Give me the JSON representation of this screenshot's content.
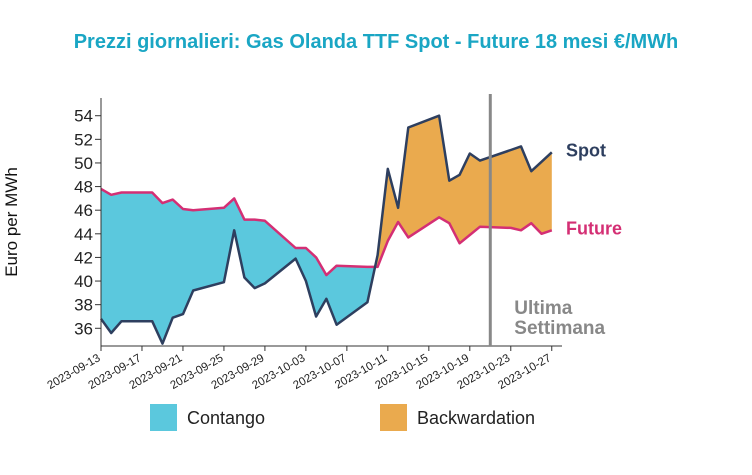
{
  "chart_data": {
    "type": "area",
    "title": "Prezzi giornalieri: Gas Olanda TTF Spot - Future 18 mesi €/MWh",
    "xlabel": "",
    "ylabel": "Euro per MWh",
    "ylim": [
      34.5,
      55.5
    ],
    "yticks": [
      36,
      38,
      40,
      42,
      44,
      46,
      48,
      50,
      52,
      54
    ],
    "xlim": [
      "2023-09-13",
      "2023-10-28"
    ],
    "xticks": [
      "2023-09-13",
      "2023-09-17",
      "2023-09-21",
      "2023-09-25",
      "2023-09-29",
      "2023-10-03",
      "2023-10-07",
      "2023-10-11",
      "2023-10-15",
      "2023-10-19",
      "2023-10-23",
      "2023-10-27"
    ],
    "x": [
      "2023-09-13",
      "2023-09-14",
      "2023-09-15",
      "2023-09-18",
      "2023-09-19",
      "2023-09-20",
      "2023-09-21",
      "2023-09-22",
      "2023-09-25",
      "2023-09-26",
      "2023-09-27",
      "2023-09-28",
      "2023-09-29",
      "2023-10-02",
      "2023-10-03",
      "2023-10-04",
      "2023-10-05",
      "2023-10-06",
      "2023-10-09",
      "2023-10-10",
      "2023-10-11",
      "2023-10-12",
      "2023-10-13",
      "2023-10-16",
      "2023-10-17",
      "2023-10-18",
      "2023-10-19",
      "2023-10-20",
      "2023-10-23",
      "2023-10-24",
      "2023-10-25",
      "2023-10-26",
      "2023-10-27"
    ],
    "series": [
      {
        "name": "Spot",
        "color": "#2e3f5f",
        "values": [
          36.8,
          35.6,
          36.6,
          36.6,
          34.7,
          36.9,
          37.2,
          39.2,
          39.9,
          44.3,
          40.3,
          39.4,
          39.8,
          41.9,
          40.0,
          37.0,
          38.5,
          36.3,
          38.2,
          42.2,
          49.5,
          46.2,
          53.0,
          54.0,
          48.5,
          49.0,
          50.8,
          50.2,
          51.1,
          51.4,
          49.3,
          50.1,
          50.9
        ]
      },
      {
        "name": "Future",
        "color": "#d42f74",
        "values": [
          47.8,
          47.3,
          47.5,
          47.5,
          46.6,
          46.9,
          46.1,
          46.0,
          46.2,
          47.0,
          45.2,
          45.2,
          45.1,
          42.8,
          42.8,
          42.0,
          40.5,
          41.3,
          41.2,
          41.2,
          43.4,
          45.0,
          43.7,
          45.4,
          44.9,
          43.2,
          43.9,
          44.6,
          44.5,
          44.3,
          44.9,
          44.0,
          44.3
        ]
      }
    ],
    "fill_colors": {
      "contango": "#5bc8dd",
      "backwardation": "#eaaa4e"
    },
    "legend": [
      "Contango",
      "Backwardation"
    ],
    "legend_position": "bottom",
    "vline": {
      "x": "2023-10-21",
      "label_lines": [
        "Ultima",
        "Settimana"
      ],
      "color": "#888888"
    },
    "grid": false
  },
  "colors": {
    "title": "#1aa6c4"
  }
}
